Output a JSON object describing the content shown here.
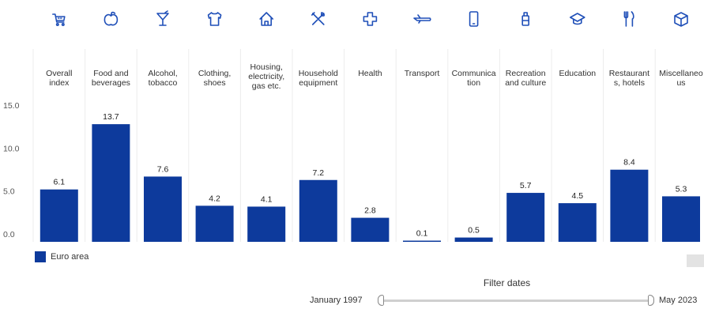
{
  "chart_data": {
    "type": "bar",
    "categories": [
      [
        "Overall",
        "index"
      ],
      [
        "Food and",
        "beverages"
      ],
      [
        "Alcohol,",
        "tobacco"
      ],
      [
        "Clothing,",
        "shoes"
      ],
      [
        "Housing,",
        "electricity,",
        "gas etc."
      ],
      [
        "Household",
        "equipment"
      ],
      [
        "Health"
      ],
      [
        "Transport"
      ],
      [
        "Communica",
        "tion"
      ],
      [
        "Recreation",
        "and culture"
      ],
      [
        "Education"
      ],
      [
        "Restaurant",
        "s, hotels"
      ],
      [
        "Miscellaneo",
        "us"
      ]
    ],
    "icons": [
      "cart-icon",
      "apple-icon",
      "cocktail-icon",
      "shirt-icon",
      "house-icon",
      "tools-icon",
      "health-cross-icon",
      "plane-icon",
      "phone-icon",
      "luggage-icon",
      "graduation-cap-icon",
      "cutlery-icon",
      "box-icon"
    ],
    "series": [
      {
        "name": "Euro area",
        "color": "#0d3a9c",
        "values": [
          6.1,
          13.7,
          7.6,
          4.2,
          4.1,
          7.2,
          2.8,
          0.1,
          0.5,
          5.7,
          4.5,
          8.4,
          5.3
        ],
        "value_labels": [
          "6.1",
          "13.7",
          "7.6",
          "4.2",
          "4.1",
          "7.2",
          "2.8",
          "0.1",
          "0.5",
          "5.7",
          "4.5",
          "8.4",
          "5.3"
        ]
      }
    ],
    "ylim": [
      0,
      15
    ],
    "yticks": [
      0,
      5,
      10,
      15
    ],
    "ytick_labels": [
      "0.0",
      "5.0",
      "10.0",
      "15.0"
    ],
    "grid": "vertical",
    "legend_placement": "bottom-left",
    "icon_color": "#1f4fb8"
  },
  "filter": {
    "title": "Filter dates",
    "start_label": "January 1997",
    "end_label": "May 2023"
  }
}
